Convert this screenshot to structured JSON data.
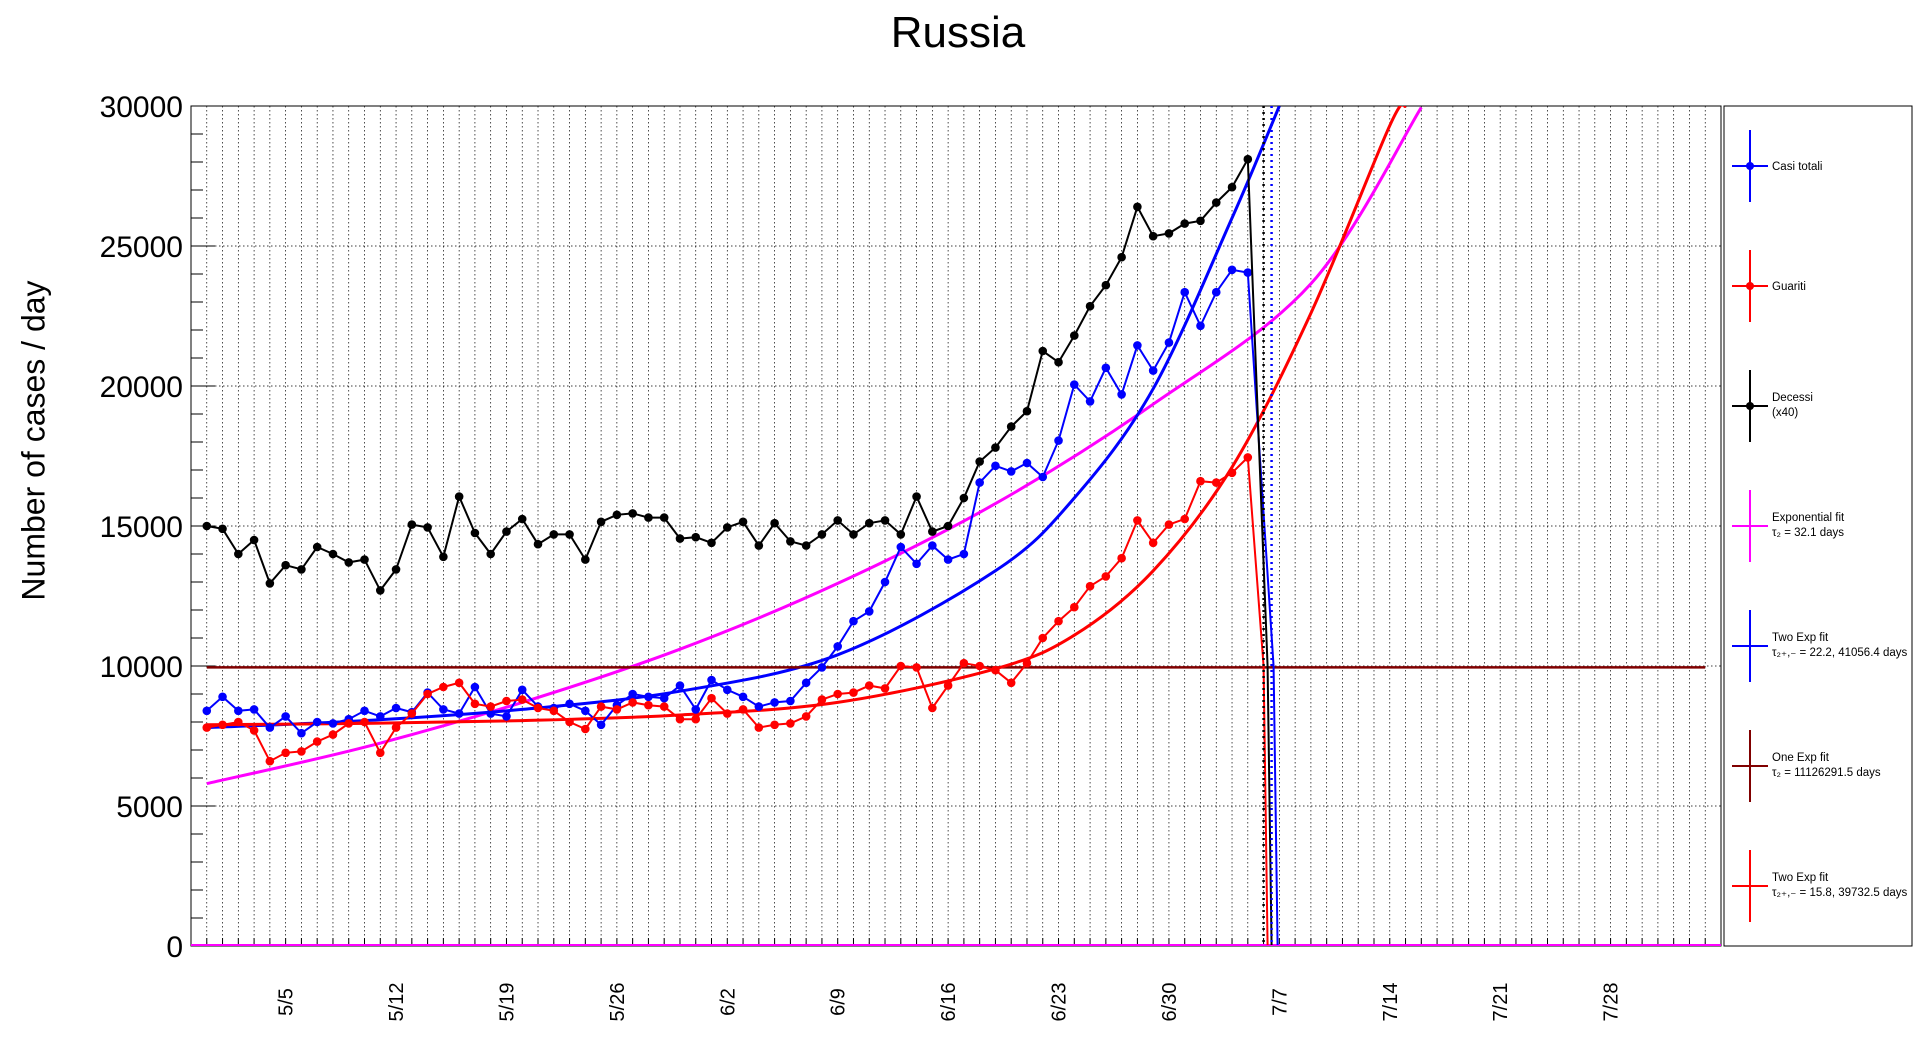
{
  "chart_data": {
    "type": "line",
    "title": "Russia",
    "xlabel": "",
    "ylabel": "Number of cases / day",
    "ylim": [
      0,
      30000
    ],
    "x_start": "2020-04-29",
    "x_end": "2020-08-04",
    "y_ticks": [
      "0",
      "5000",
      "10000",
      "15000",
      "20000",
      "25000",
      "30000"
    ],
    "x_tick_labels": [
      "5/5",
      "5/12",
      "5/19",
      "5/26",
      "6/2",
      "6/9",
      "6/16",
      "6/23",
      "6/30",
      "7/7",
      "7/14",
      "7/21",
      "7/28"
    ],
    "x_tick_dates": [
      "2020-05-05",
      "2020-05-12",
      "2020-05-19",
      "2020-05-26",
      "2020-06-02",
      "2020-06-09",
      "2020-06-16",
      "2020-06-23",
      "2020-06-30",
      "2020-07-07",
      "2020-07-14",
      "2020-07-21",
      "2020-07-28"
    ],
    "grid": true,
    "legend_position": "right",
    "series": [
      {
        "name": "Casi totali",
        "kind": "points",
        "color": "#0000ff",
        "start_date": "2020-04-30",
        "values": [
          8400,
          8900,
          8400,
          8450,
          7800,
          8200,
          7600,
          8000,
          7950,
          8100,
          8400,
          8200,
          8500,
          8350,
          9050,
          8450,
          8300,
          9250,
          8300,
          8200,
          9150,
          8550,
          8500,
          8650,
          8400,
          7900,
          8600,
          9000,
          8900,
          8850,
          9300,
          8450,
          9500,
          9150,
          8900,
          8550,
          8700,
          8750,
          9400,
          9950,
          10700,
          11600,
          11950,
          13000,
          14250,
          13650,
          14300,
          13800,
          14000,
          16550,
          17150,
          16950,
          17250,
          16750,
          18050,
          20050,
          19450,
          20650,
          19700,
          21450,
          20550,
          21550,
          23350,
          22150,
          23350,
          24150,
          24050
        ]
      },
      {
        "name": "Guariti",
        "kind": "points",
        "color": "#ff0000",
        "start_date": "2020-04-30",
        "values": [
          7800,
          7900,
          8000,
          7700,
          6600,
          6900,
          6950,
          7300,
          7550,
          7950,
          8000,
          6900,
          7800,
          8300,
          9000,
          9250,
          9400,
          8650,
          8550,
          8750,
          8800,
          8500,
          8400,
          8000,
          7750,
          8550,
          8450,
          8700,
          8600,
          8550,
          8100,
          8100,
          8850,
          8300,
          8450,
          7800,
          7900,
          7950,
          8200,
          8800,
          9000,
          9050,
          9300,
          9200,
          10000,
          9950,
          8500,
          9300,
          10100,
          10000,
          9850,
          9400,
          10100,
          11000,
          11600,
          12100,
          12850,
          13200,
          13850,
          15200,
          14400,
          15050,
          15250,
          16600,
          16550,
          16900,
          17450
        ]
      },
      {
        "name": "Decessi",
        "name2": "(x40)",
        "kind": "points",
        "color": "#000000",
        "start_date": "2020-04-30",
        "values": [
          15000,
          14900,
          14000,
          14500,
          12950,
          13600,
          13450,
          14250,
          14000,
          13700,
          13800,
          12700,
          13450,
          15050,
          14950,
          13900,
          16050,
          14750,
          14000,
          14800,
          15250,
          14350,
          14700,
          14700,
          13800,
          15150,
          15400,
          15450,
          15300,
          15300,
          14550,
          14600,
          14400,
          14950,
          15150,
          14300,
          15100,
          14450,
          14300,
          14700,
          15200,
          14700,
          15100,
          15200,
          14700,
          16050,
          14800,
          15000,
          16000,
          17300,
          17800,
          18550,
          19100,
          21250,
          20850,
          21800,
          22850,
          23600,
          24600,
          26400,
          25350,
          25450,
          25800,
          25900,
          26550,
          27100,
          28100
        ]
      },
      {
        "name": "Exponential fit",
        "label_text": "τ₂ = 32.1 days",
        "kind": "fit",
        "color": "#ff00ff",
        "x": [
          "2020-04-30",
          "2020-05-10",
          "2020-05-20",
          "2020-05-30",
          "2020-06-09",
          "2020-06-19",
          "2020-06-29",
          "2020-07-09",
          "2020-07-16"
        ],
        "y": [
          5800,
          7100,
          8700,
          10600,
          12950,
          15800,
          19350,
          23650,
          29950
        ]
      },
      {
        "name": "Two Exp fit",
        "label_text": "τ₂₊,₋ = 22.2, 41056.4 days",
        "kind": "fit",
        "color": "#0000ff",
        "x": [
          "2020-04-30",
          "2020-05-10",
          "2020-05-20",
          "2020-05-30",
          "2020-06-09",
          "2020-06-19",
          "2020-06-24",
          "2020-06-29",
          "2020-07-04",
          "2020-07-07"
        ],
        "y": [
          7800,
          8050,
          8450,
          9100,
          10400,
          13400,
          16000,
          19900,
          26000,
          30000
        ]
      },
      {
        "name": "One Exp fit",
        "label_text": "τ₂ = 11126291.5 days",
        "kind": "fit",
        "color": "#800000",
        "x": [
          "2020-04-30",
          "2020-08-03"
        ],
        "y": [
          9950,
          9950
        ]
      },
      {
        "name": "Two Exp fit",
        "label_text": "τ₂₊,₋ = 15.8, 39732.5 days",
        "kind": "fit",
        "color": "#ff0000",
        "x": [
          "2020-04-30",
          "2020-05-10",
          "2020-05-20",
          "2020-05-30",
          "2020-06-09",
          "2020-06-19",
          "2020-06-24",
          "2020-06-29",
          "2020-07-04",
          "2020-07-09",
          "2020-07-14",
          "2020-07-15"
        ],
        "y": [
          7900,
          7950,
          8050,
          8250,
          8700,
          9900,
          11100,
          13400,
          17100,
          22600,
          29300,
          30000
        ]
      }
    ],
    "vertical_markers": [
      "2020-07-06",
      "2020-07-06"
    ]
  }
}
